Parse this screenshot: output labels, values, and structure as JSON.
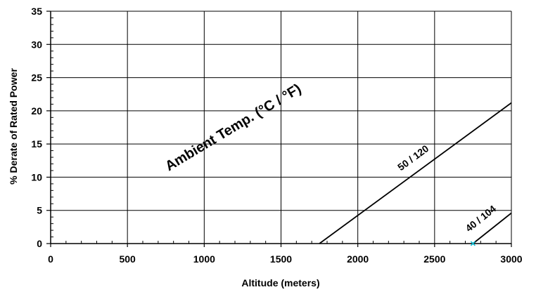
{
  "chart_data": {
    "type": "line",
    "title": "",
    "xlabel": "Altitude (meters)",
    "ylabel": "% Derate of Rated Power",
    "xlim": [
      0,
      3000
    ],
    "ylim": [
      0,
      35
    ],
    "xticks": [
      0,
      500,
      1000,
      1500,
      2000,
      2500,
      3000
    ],
    "yticks": [
      0,
      5,
      10,
      15,
      20,
      25,
      30,
      35
    ],
    "grid": true,
    "annotation": "Ambient Temp. (°C / °F)",
    "series": [
      {
        "name": "50 / 120",
        "color": "#000000",
        "points": [
          [
            1750,
            0
          ],
          [
            3000,
            21.2
          ]
        ]
      },
      {
        "name": "40 / 104",
        "color": "#000000",
        "points": [
          [
            2750,
            0
          ],
          [
            3000,
            4.6
          ]
        ]
      }
    ],
    "marker": {
      "x": 2750,
      "y": 0,
      "color": "#00bcd4"
    }
  }
}
